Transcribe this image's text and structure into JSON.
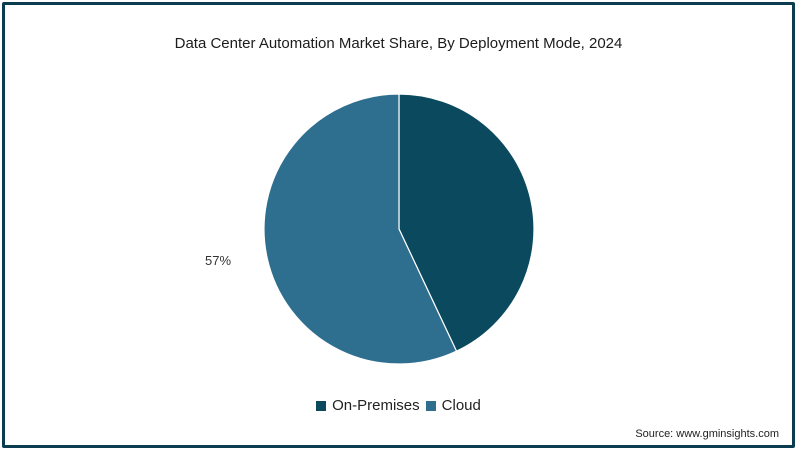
{
  "chart_data": {
    "type": "pie",
    "title": "Data Center Automation Market Share, By Deployment Mode, 2024",
    "series": [
      {
        "name": "On-Premises",
        "value": 43,
        "color": "#0b4a5e",
        "label": ""
      },
      {
        "name": "Cloud",
        "value": 57,
        "color": "#2e6e8e",
        "label": "57%"
      }
    ],
    "legend_position": "bottom-center",
    "source": "Source: www.gminsights.com"
  }
}
